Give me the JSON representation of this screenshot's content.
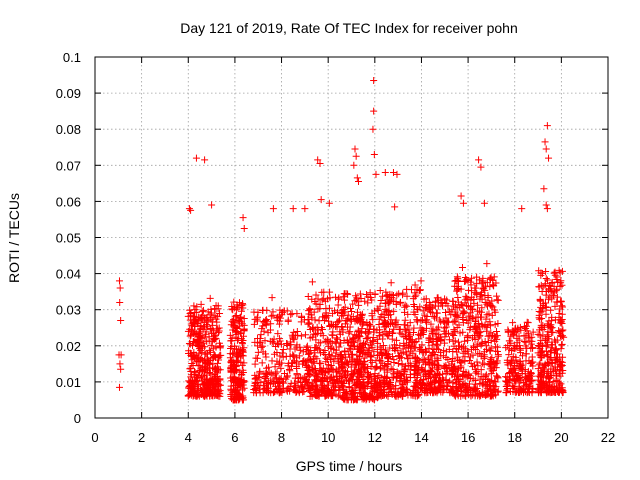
{
  "chart_data": {
    "type": "scatter",
    "title": "Day 121 of 2019, Rate Of TEC Index for receiver pohn",
    "xlabel": "GPS time / hours",
    "ylabel": "ROTI / TECUs",
    "xlim": [
      0,
      22
    ],
    "ylim": [
      0,
      0.1
    ],
    "xticks": [
      "0",
      "2",
      "4",
      "6",
      "8",
      "10",
      "12",
      "14",
      "16",
      "18",
      "20",
      "22"
    ],
    "yticks": [
      "0",
      "0.01",
      "0.02",
      "0.03",
      "0.04",
      "0.05",
      "0.06",
      "0.07",
      "0.08",
      "0.09",
      "0.1"
    ],
    "grid": true,
    "marker": "+",
    "color": "#ff0000",
    "series": [
      {
        "name": "ROTI",
        "notable_points": [
          {
            "x": 1.05,
            "y": 0.038
          },
          {
            "x": 1.08,
            "y": 0.036
          },
          {
            "x": 1.06,
            "y": 0.032
          },
          {
            "x": 1.1,
            "y": 0.027
          },
          {
            "x": 1.03,
            "y": 0.0175
          },
          {
            "x": 1.12,
            "y": 0.0175
          },
          {
            "x": 1.07,
            "y": 0.015
          },
          {
            "x": 1.1,
            "y": 0.0135
          },
          {
            "x": 1.05,
            "y": 0.0085
          },
          {
            "x": 4.35,
            "y": 0.072
          },
          {
            "x": 4.7,
            "y": 0.0715
          },
          {
            "x": 4.05,
            "y": 0.058
          },
          {
            "x": 4.1,
            "y": 0.0575
          },
          {
            "x": 5.0,
            "y": 0.059
          },
          {
            "x": 6.35,
            "y": 0.0555
          },
          {
            "x": 6.4,
            "y": 0.0525
          },
          {
            "x": 7.65,
            "y": 0.058
          },
          {
            "x": 8.5,
            "y": 0.058
          },
          {
            "x": 9.0,
            "y": 0.058
          },
          {
            "x": 9.55,
            "y": 0.0715
          },
          {
            "x": 9.65,
            "y": 0.0705
          },
          {
            "x": 9.7,
            "y": 0.0605
          },
          {
            "x": 10.05,
            "y": 0.0595
          },
          {
            "x": 11.15,
            "y": 0.0745
          },
          {
            "x": 11.2,
            "y": 0.0725
          },
          {
            "x": 11.1,
            "y": 0.07
          },
          {
            "x": 11.25,
            "y": 0.0665
          },
          {
            "x": 11.3,
            "y": 0.0655
          },
          {
            "x": 11.95,
            "y": 0.0935
          },
          {
            "x": 11.95,
            "y": 0.085
          },
          {
            "x": 11.92,
            "y": 0.08
          },
          {
            "x": 11.98,
            "y": 0.073
          },
          {
            "x": 12.05,
            "y": 0.0675
          },
          {
            "x": 12.45,
            "y": 0.068
          },
          {
            "x": 12.8,
            "y": 0.068
          },
          {
            "x": 12.95,
            "y": 0.0675
          },
          {
            "x": 12.85,
            "y": 0.0585
          },
          {
            "x": 16.45,
            "y": 0.0715
          },
          {
            "x": 16.55,
            "y": 0.0695
          },
          {
            "x": 15.7,
            "y": 0.0615
          },
          {
            "x": 15.8,
            "y": 0.0595
          },
          {
            "x": 16.7,
            "y": 0.0595
          },
          {
            "x": 18.3,
            "y": 0.058
          },
          {
            "x": 19.4,
            "y": 0.081
          },
          {
            "x": 19.3,
            "y": 0.0765
          },
          {
            "x": 19.35,
            "y": 0.0745
          },
          {
            "x": 19.45,
            "y": 0.072
          },
          {
            "x": 19.25,
            "y": 0.0635
          },
          {
            "x": 19.35,
            "y": 0.059
          },
          {
            "x": 19.4,
            "y": 0.058
          }
        ],
        "dense_bands": [
          {
            "x_range": [
              4.0,
              5.4
            ],
            "y_range": [
              0.006,
              0.036
            ],
            "count": 420
          },
          {
            "x_range": [
              5.8,
              6.4
            ],
            "y_range": [
              0.005,
              0.037
            ],
            "count": 220
          },
          {
            "x_range": [
              6.8,
              9.1
            ],
            "y_range": [
              0.007,
              0.034
            ],
            "count": 280
          },
          {
            "x_range": [
              9.1,
              10.6
            ],
            "y_range": [
              0.006,
              0.04
            ],
            "count": 330
          },
          {
            "x_range": [
              10.6,
              12.2
            ],
            "y_range": [
              0.005,
              0.04
            ],
            "count": 400
          },
          {
            "x_range": [
              12.2,
              14.0
            ],
            "y_range": [
              0.006,
              0.041
            ],
            "count": 380
          },
          {
            "x_range": [
              14.0,
              15.4
            ],
            "y_range": [
              0.007,
              0.038
            ],
            "count": 300
          },
          {
            "x_range": [
              15.4,
              17.3
            ],
            "y_range": [
              0.006,
              0.045
            ],
            "count": 420
          },
          {
            "x_range": [
              17.6,
              18.8
            ],
            "y_range": [
              0.007,
              0.03
            ],
            "count": 200
          },
          {
            "x_range": [
              19.0,
              20.1
            ],
            "y_range": [
              0.007,
              0.047
            ],
            "count": 320
          }
        ]
      }
    ]
  }
}
